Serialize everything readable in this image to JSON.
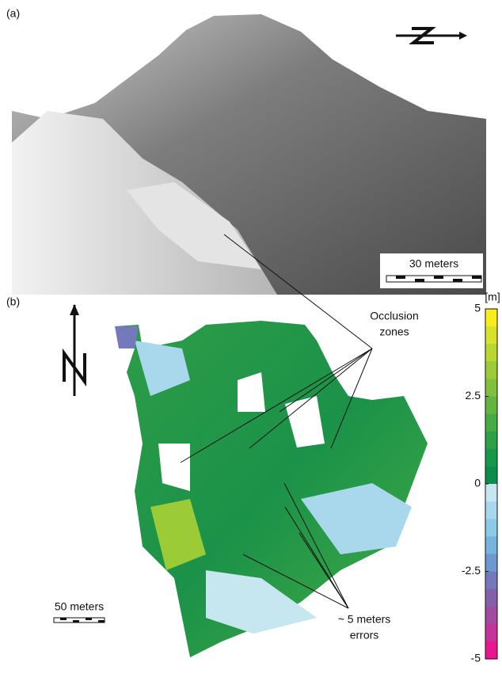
{
  "panel_a": {
    "label": "(a)",
    "scale_bar": "30 meters"
  },
  "panel_b": {
    "label": "(b)",
    "scale_bar": "50 meters",
    "annotations": [
      [
        "Occlusion",
        "zones"
      ],
      [
        "~ 5 meters",
        "errors"
      ]
    ]
  },
  "colorbar": {
    "unit": "[m]",
    "lim": [
      -5,
      5
    ],
    "ticks": [
      5,
      2.5,
      0,
      -2.5,
      -5
    ],
    "colors": [
      "#f7ec1c",
      "#d9e22a",
      "#b9d633",
      "#9ccb38",
      "#80c03c",
      "#62b640",
      "#45ab44",
      "#2ea048",
      "#17974a",
      "#0b8e4c",
      "#c6e6f0",
      "#a9d8ec",
      "#8ccbe8",
      "#76b4e0",
      "#6e98d0",
      "#7479bb",
      "#8560aa",
      "#a24a9f",
      "#c43397",
      "#e8178f"
    ]
  }
}
